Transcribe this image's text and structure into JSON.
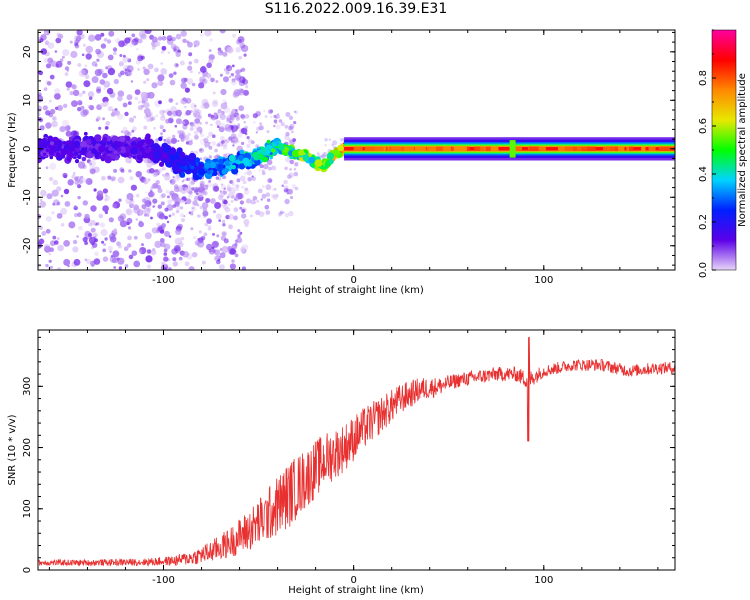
{
  "title": "S116.2022.009.16.39.E31",
  "chart_data": [
    {
      "type": "heatmap",
      "xlabel": "Height of straight line (km)",
      "ylabel": "Frequency (Hz)",
      "xlim": [
        -166,
        169
      ],
      "ylim": [
        -25,
        24.5
      ],
      "xticks": [
        -100,
        0,
        100
      ],
      "yticks": [
        -20,
        -10,
        0,
        10,
        20
      ],
      "grid": false,
      "colorbar": {
        "label": "Normalized spectral amplitude",
        "range": [
          0,
          1
        ],
        "ticks": [
          "0.0",
          "0.2",
          "0.4",
          "0.6",
          "0.8"
        ],
        "colormap": [
          "#e8d5f8",
          "#5b00e8",
          "#0020ff",
          "#00d4ff",
          "#00ff00",
          "#e8e800",
          "#ff8800",
          "#ff0000",
          "#ff00a0"
        ]
      },
      "ridge": {
        "x": [
          -166,
          -140,
          -110,
          -100,
          -90,
          -80,
          -70,
          -60,
          -50,
          -40,
          -30,
          -25,
          -20,
          -15,
          -10,
          -5,
          0,
          20,
          40,
          60,
          80,
          100,
          120,
          140,
          169
        ],
        "y": [
          0,
          0,
          0,
          -1,
          -3,
          -4.5,
          -3.5,
          -2.5,
          -1.5,
          0.5,
          -1,
          -1.5,
          -3,
          -3.5,
          -1,
          0,
          0,
          0,
          0,
          0,
          0,
          0,
          0,
          0,
          0
        ],
        "amplitude": [
          0.15,
          0.15,
          0.15,
          0.2,
          0.25,
          0.3,
          0.35,
          0.4,
          0.45,
          0.5,
          0.55,
          0.6,
          0.55,
          0.65,
          0.7,
          0.8,
          0.95,
          0.95,
          0.95,
          0.95,
          0.95,
          0.95,
          0.95,
          0.95,
          0.95
        ]
      }
    },
    {
      "type": "line",
      "xlabel": "Height of straight line (km)",
      "ylabel": "SNR (10 * v/v)",
      "xlim": [
        -166,
        169
      ],
      "ylim": [
        0,
        392
      ],
      "xticks": [
        -100,
        0,
        100
      ],
      "yticks": [
        0,
        100,
        200,
        300
      ],
      "grid": false,
      "color": "#e83030",
      "series": [
        {
          "x": [
            -166,
            -140,
            -110,
            -95,
            -85,
            -75,
            -65,
            -55,
            -45,
            -35,
            -25,
            -15,
            -5,
            5,
            15,
            25,
            35,
            45,
            55,
            65,
            75,
            85,
            92,
            100,
            115,
            130,
            145,
            160,
            169
          ],
          "values": [
            12,
            12,
            13,
            15,
            20,
            30,
            45,
            65,
            90,
            120,
            150,
            180,
            200,
            230,
            255,
            280,
            295,
            300,
            310,
            315,
            320,
            320,
            310,
            325,
            335,
            335,
            325,
            330,
            330
          ],
          "noise": [
            5,
            5,
            6,
            8,
            12,
            18,
            25,
            35,
            45,
            55,
            50,
            45,
            40,
            35,
            30,
            25,
            20,
            15,
            12,
            12,
            12,
            12,
            15,
            10,
            10,
            10,
            10,
            10,
            10
          ]
        }
      ]
    }
  ]
}
